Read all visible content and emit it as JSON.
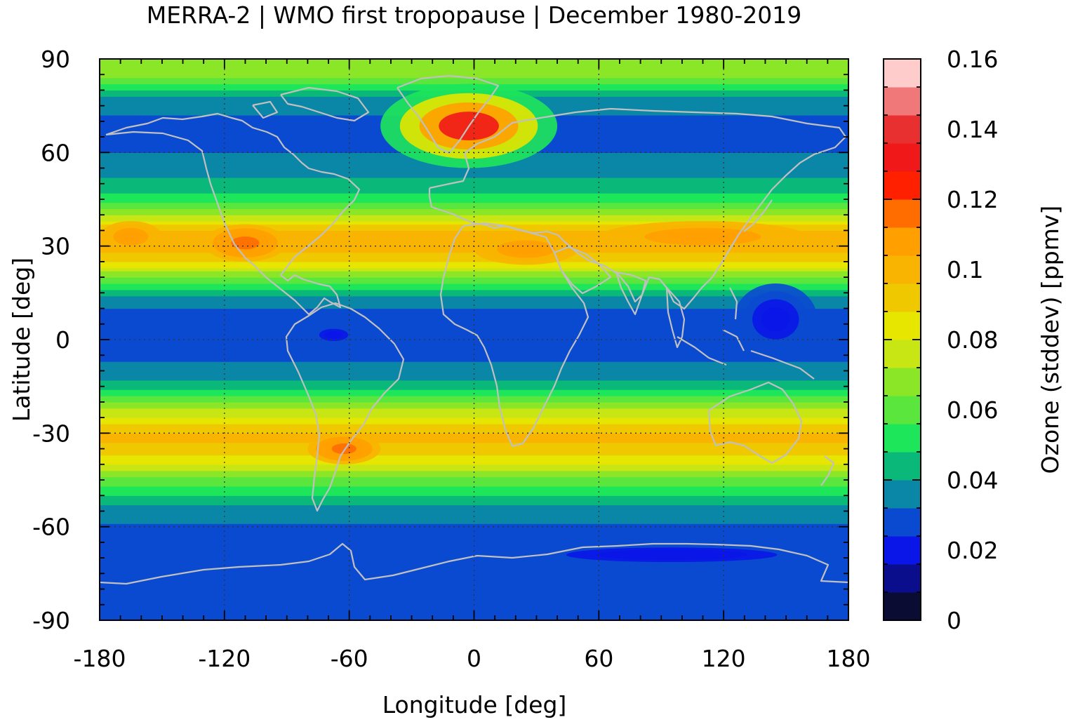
{
  "chart_data": {
    "type": "heatmap",
    "title": "MERRA-2 | WMO first tropopause | December 1980-2019",
    "xlabel": "Longitude [deg]",
    "ylabel": "Latitude [deg]",
    "colorbar_label": "Ozone (stddev) [ppmv]",
    "xlim": [
      -180,
      180
    ],
    "ylim": [
      -90,
      90
    ],
    "x_ticks": [
      -180,
      -120,
      -60,
      0,
      60,
      120,
      180
    ],
    "y_ticks": [
      -90,
      -60,
      -30,
      0,
      30,
      60,
      90
    ],
    "x_tick_labels": [
      "-180",
      "-120",
      "-60",
      "0",
      "60",
      "120",
      "180"
    ],
    "y_tick_labels": [
      "-90",
      "-60",
      "-30",
      "0",
      "30",
      "60",
      "90"
    ],
    "colorbar_range": [
      0,
      0.16
    ],
    "colorbar_ticks": [
      0,
      0.02,
      0.04,
      0.06,
      0.08,
      0.1,
      0.12,
      0.14,
      0.16
    ],
    "colorbar_tick_labels": [
      "0",
      "0.02",
      "0.04",
      "0.06",
      "0.08",
      "0.1",
      "0.12",
      "0.14",
      "0.16"
    ],
    "grid": true,
    "overlay": "coastlines",
    "colors": [
      "#0b0c33",
      "#0a0e8c",
      "#0a16e8",
      "#0a4ad0",
      "#0a86a6",
      "#0ab87a",
      "#1ee65a",
      "#5ae63c",
      "#8ce628",
      "#c8e614",
      "#e6e600",
      "#f0c800",
      "#f8b400",
      "#ffa000",
      "#ff6c00",
      "#ff2000",
      "#f01818",
      "#e83030",
      "#f07878",
      "#ffcccc"
    ],
    "zonal_profile": [
      {
        "lat": -90,
        "value": 0.025
      },
      {
        "lat": -80,
        "value": 0.026
      },
      {
        "lat": -70,
        "value": 0.027
      },
      {
        "lat": -62,
        "value": 0.029
      },
      {
        "lat": -55,
        "value": 0.036
      },
      {
        "lat": -50,
        "value": 0.048
      },
      {
        "lat": -45,
        "value": 0.062
      },
      {
        "lat": -40,
        "value": 0.08
      },
      {
        "lat": -35,
        "value": 0.094
      },
      {
        "lat": -31,
        "value": 0.098
      },
      {
        "lat": -26,
        "value": 0.086
      },
      {
        "lat": -20,
        "value": 0.062
      },
      {
        "lat": -15,
        "value": 0.044
      },
      {
        "lat": -10,
        "value": 0.034
      },
      {
        "lat": 0,
        "value": 0.028
      },
      {
        "lat": 8,
        "value": 0.029
      },
      {
        "lat": 14,
        "value": 0.038
      },
      {
        "lat": 20,
        "value": 0.062
      },
      {
        "lat": 25,
        "value": 0.088
      },
      {
        "lat": 30,
        "value": 0.1
      },
      {
        "lat": 35,
        "value": 0.096
      },
      {
        "lat": 40,
        "value": 0.07
      },
      {
        "lat": 45,
        "value": 0.052
      },
      {
        "lat": 50,
        "value": 0.042
      },
      {
        "lat": 55,
        "value": 0.036
      },
      {
        "lat": 60,
        "value": 0.032
      },
      {
        "lat": 65,
        "value": 0.03
      },
      {
        "lat": 70,
        "value": 0.03
      },
      {
        "lat": 77,
        "value": 0.036
      },
      {
        "lat": 82,
        "value": 0.058
      },
      {
        "lat": 87,
        "value": 0.072
      },
      {
        "lat": 90,
        "value": 0.07
      }
    ],
    "regional_features": [
      {
        "region": "North Atlantic / Greenland Sea",
        "lon": [
          -45,
          40
        ],
        "lat": [
          55,
          82
        ],
        "peak_value": 0.13
      },
      {
        "region": "Subtropical jet North America",
        "lon": [
          -130,
          -90
        ],
        "lat": [
          25,
          37
        ],
        "peak_value": 0.115
      },
      {
        "region": "Subtropical jet North Africa",
        "lon": [
          0,
          50
        ],
        "lat": [
          24,
          34
        ],
        "peak_value": 0.11
      },
      {
        "region": "Subtropical jet Asia",
        "lon": [
          60,
          160
        ],
        "lat": [
          28,
          38
        ],
        "peak_value": 0.11
      },
      {
        "region": "Central North Pacific",
        "lon": [
          -180,
          -150
        ],
        "lat": [
          28,
          38
        ],
        "peak_value": 0.11
      },
      {
        "region": "South America jet",
        "lon": [
          -80,
          -45
        ],
        "lat": [
          -40,
          -30
        ],
        "peak_value": 0.115
      },
      {
        "region": "Western tropical Pacific minimum",
        "lon": [
          125,
          165
        ],
        "lat": [
          -5,
          18
        ],
        "peak_value": 0.02
      },
      {
        "region": "Amazon minimum",
        "lon": [
          -80,
          -55
        ],
        "lat": [
          -2,
          5
        ],
        "peak_value": 0.02
      },
      {
        "region": "Antarctic coast minimum",
        "lon": [
          30,
          160
        ],
        "lat": [
          -72,
          -66
        ],
        "peak_value": 0.02
      }
    ]
  }
}
